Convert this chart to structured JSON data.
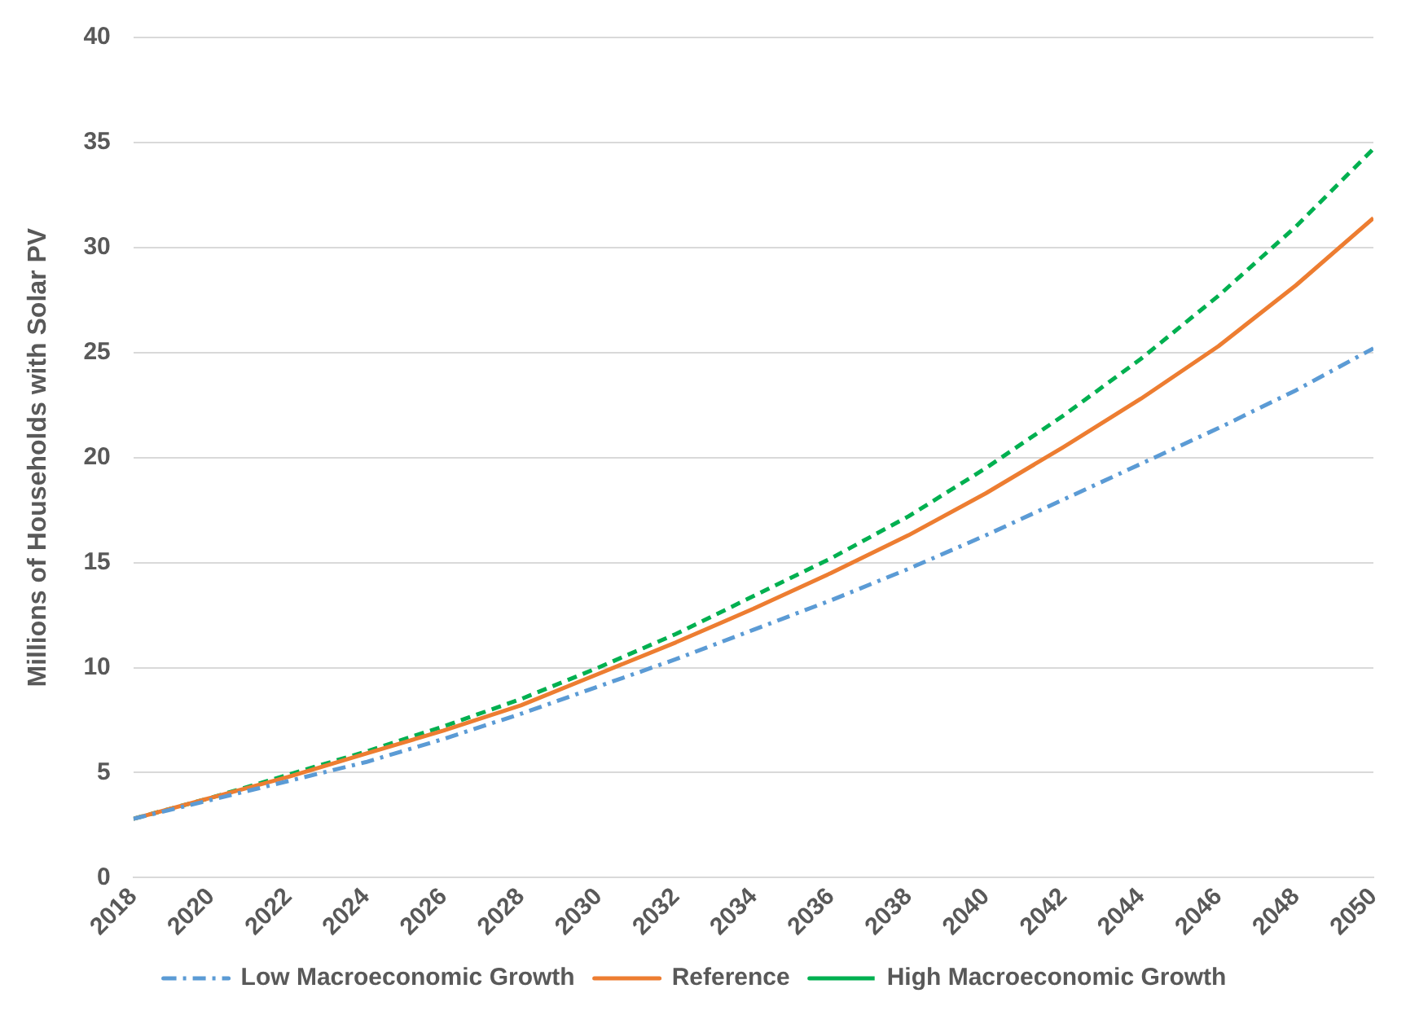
{
  "chart_data": {
    "type": "line",
    "ylabel": "Millions of Households with Solar PV",
    "x": [
      2018,
      2020,
      2022,
      2024,
      2026,
      2028,
      2030,
      2032,
      2034,
      2036,
      2038,
      2040,
      2042,
      2044,
      2046,
      2048,
      2050
    ],
    "series": [
      {
        "name": "Low Macroeconomic Growth",
        "color": "#5b9bd5",
        "line_style": "dashdot",
        "values": [
          2.8,
          3.7,
          4.6,
          5.5,
          6.6,
          7.8,
          9.1,
          10.4,
          11.8,
          13.2,
          14.7,
          16.3,
          18.0,
          19.7,
          21.4,
          23.2,
          25.2
        ]
      },
      {
        "name": "Reference",
        "color": "#ed7d31",
        "line_style": "solid",
        "values": [
          2.8,
          3.8,
          4.8,
          5.9,
          7.0,
          8.2,
          9.7,
          11.2,
          12.8,
          14.5,
          16.3,
          18.3,
          20.5,
          22.8,
          25.3,
          28.2,
          31.4
        ]
      },
      {
        "name": "High Macroeconomic Growth",
        "color": "#00b050",
        "line_style": "dashed",
        "values": [
          2.8,
          3.8,
          4.9,
          6.0,
          7.2,
          8.5,
          10.0,
          11.6,
          13.4,
          15.2,
          17.2,
          19.5,
          22.0,
          24.7,
          27.7,
          31.0,
          34.7
        ]
      }
    ],
    "xlim": [
      2018,
      2050
    ],
    "xticks": [
      2018,
      2020,
      2022,
      2024,
      2026,
      2028,
      2030,
      2032,
      2034,
      2036,
      2038,
      2040,
      2042,
      2044,
      2046,
      2048,
      2050
    ],
    "ylim": [
      0,
      40
    ],
    "yticks": [
      0,
      5,
      10,
      15,
      20,
      25,
      30,
      35,
      40
    ],
    "grid": "y",
    "legend": "bottom",
    "marker": "none"
  }
}
